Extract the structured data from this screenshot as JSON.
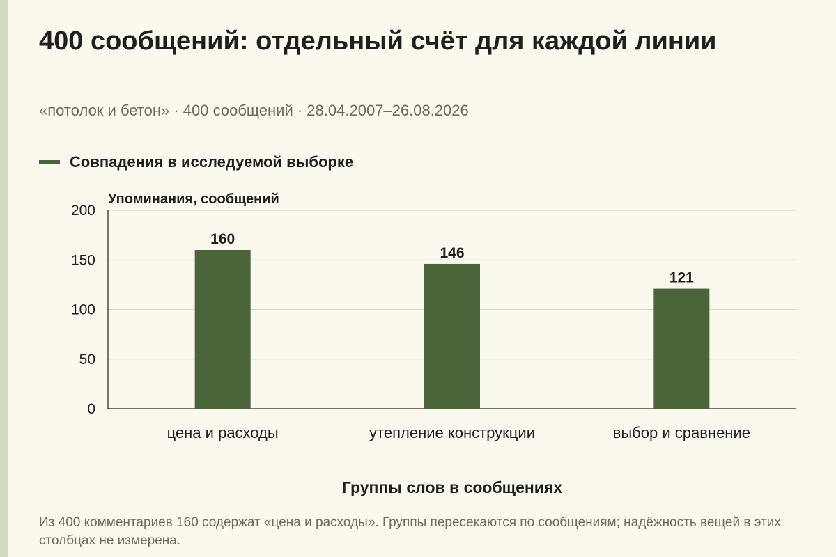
{
  "header": {
    "title": "400 сообщений: отдельный счёт для каждой линии",
    "subtitle": "«потолок и бетон» · 400 сообщений · 28.04.2007–26.08.2026"
  },
  "legend": {
    "label": "Совпадения в исследуемой выборке",
    "color": "#4a653a"
  },
  "chart_data": {
    "type": "bar",
    "title": "400 сообщений: отдельный счёт для каждой линии",
    "categories": [
      "цена и расходы",
      "утепление конструкции",
      "выбор и сравнение"
    ],
    "series": [
      {
        "name": "Совпадения в исследуемой выборке",
        "values": [
          160,
          146,
          121
        ],
        "color": "#4a653a"
      }
    ],
    "ylabel": "Упоминания, сообщений",
    "xlabel": "Группы слов в сообщениях",
    "ylim": [
      0,
      200
    ],
    "yticks": [
      0,
      50,
      100,
      150,
      200
    ],
    "grid": true,
    "legend_position": "top-left"
  },
  "footnote": "Из 400 комментариев 160 содержат «цена и расходы». Группы пересекаются по сообщениям; надёжность вещей в этих столбцах не измерена."
}
